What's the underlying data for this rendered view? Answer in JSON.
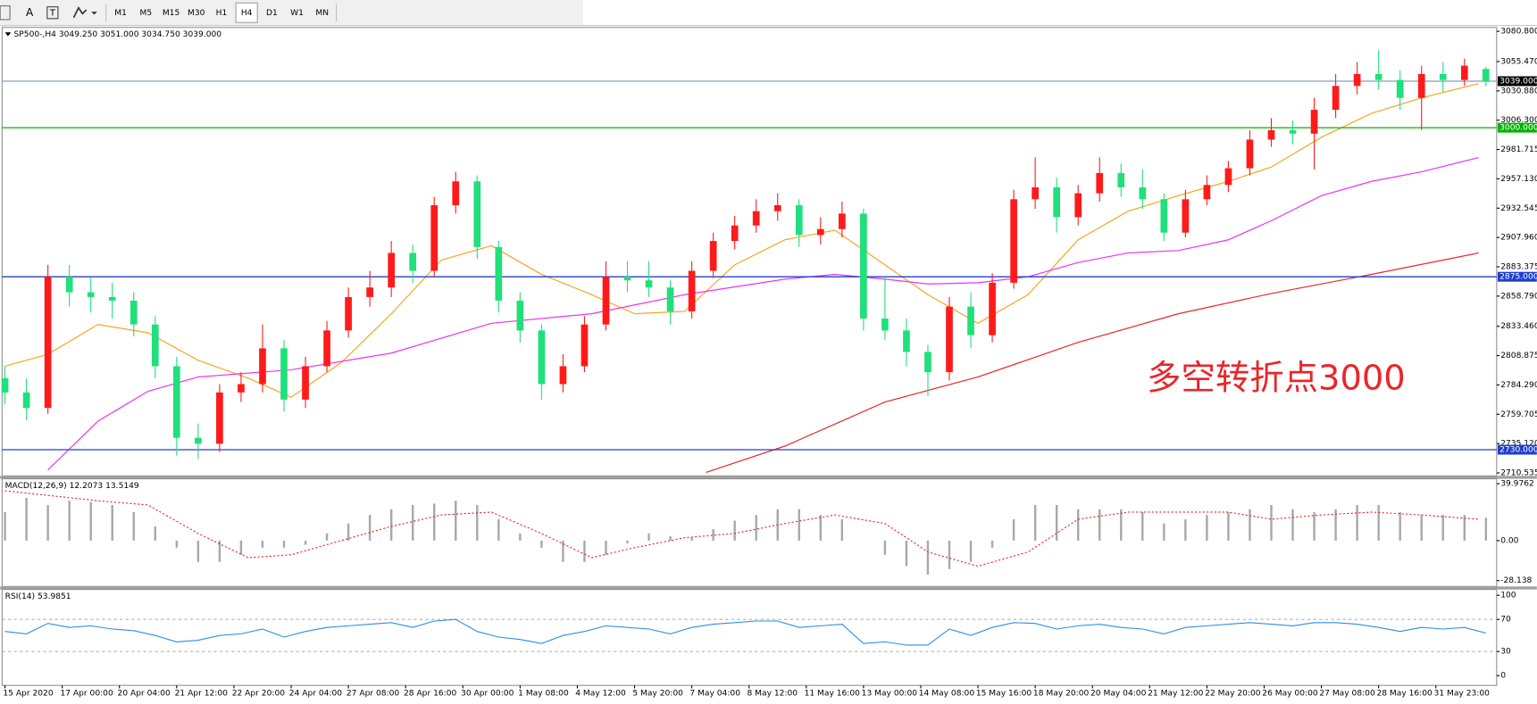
{
  "toolbar": {
    "text_tool": "A",
    "timeframes": [
      "M1",
      "M5",
      "M15",
      "M30",
      "H1",
      "H4",
      "D1",
      "W1",
      "MN"
    ],
    "selected": 5
  },
  "chart_data": [
    {
      "type": "candlestick",
      "title": "SP500-,H4  3049.250 3051.000 3034.750 3039.000",
      "annotation": "多空转折点3000",
      "annotation_color": "#e8262b",
      "up_color": "#ff1a1a",
      "down_color": "#1fe07a",
      "x": [
        0,
        3,
        6,
        9,
        12,
        15,
        18,
        21,
        24,
        27,
        30,
        33,
        36,
        39,
        42,
        45,
        48,
        51,
        54,
        57,
        60,
        63,
        66,
        69,
        72,
        75,
        78,
        81,
        84,
        87,
        90,
        93,
        96,
        99,
        102,
        105,
        108,
        111,
        114,
        117,
        120,
        123,
        126,
        129,
        132,
        135,
        138,
        141,
        144,
        147,
        150,
        153,
        156,
        159,
        162,
        165,
        168,
        171,
        174,
        177,
        180,
        183,
        186,
        189,
        192,
        195,
        198,
        201,
        204,
        207
      ],
      "open": [
        2790,
        2778,
        2765,
        2875,
        2862,
        2858,
        2855,
        2835,
        2800,
        2740,
        2735,
        2778,
        2785,
        2815,
        2772,
        2800,
        2830,
        2858,
        2866,
        2895,
        2880,
        2935,
        2955,
        2900,
        2855,
        2830,
        2785,
        2800,
        2835,
        2875,
        2872,
        2866,
        2846,
        2880,
        2905,
        2918,
        2930,
        2935,
        2910,
        2915,
        2928,
        2840,
        2830,
        2812,
        2795,
        2850,
        2826,
        2870,
        2940,
        2950,
        2925,
        2945,
        2962,
        2950,
        2940,
        2912,
        2940,
        2952,
        2966,
        2990,
        2998,
        2995,
        3015,
        3035,
        3045,
        3040,
        3025,
        3045,
        3040,
        3049.25
      ],
      "high": [
        2800,
        2790,
        2885,
        2885,
        2875,
        2870,
        2862,
        2842,
        2808,
        2752,
        2785,
        2795,
        2835,
        2822,
        2808,
        2838,
        2866,
        2880,
        2905,
        2902,
        2942,
        2963,
        2960,
        2905,
        2862,
        2835,
        2810,
        2842,
        2888,
        2888,
        2888,
        2872,
        2888,
        2912,
        2926,
        2940,
        2945,
        2940,
        2925,
        2938,
        2932,
        2876,
        2840,
        2818,
        2858,
        2862,
        2878,
        2948,
        2975,
        2958,
        2952,
        2975,
        2970,
        2965,
        2945,
        2948,
        2960,
        2972,
        2998,
        3008,
        3006,
        3025,
        3045,
        3055,
        3065,
        3048,
        3052,
        3055,
        3058,
        3051
      ],
      "low": [
        2768,
        2755,
        2760,
        2850,
        2845,
        2840,
        2825,
        2790,
        2725,
        2722,
        2728,
        2770,
        2778,
        2762,
        2765,
        2795,
        2824,
        2850,
        2858,
        2870,
        2875,
        2928,
        2890,
        2845,
        2820,
        2772,
        2778,
        2795,
        2830,
        2862,
        2858,
        2835,
        2840,
        2874,
        2898,
        2912,
        2922,
        2900,
        2902,
        2908,
        2830,
        2822,
        2800,
        2775,
        2788,
        2815,
        2820,
        2865,
        2932,
        2912,
        2918,
        2938,
        2942,
        2932,
        2905,
        2908,
        2935,
        2946,
        2960,
        2984,
        2986,
        2965,
        3008,
        3028,
        3032,
        3015,
        2998,
        3030,
        3035,
        3034.75
      ],
      "close": [
        2778,
        2765,
        2875,
        2862,
        2858,
        2855,
        2835,
        2800,
        2740,
        2735,
        2778,
        2785,
        2815,
        2772,
        2800,
        2830,
        2858,
        2866,
        2895,
        2880,
        2935,
        2955,
        2900,
        2855,
        2830,
        2785,
        2800,
        2835,
        2875,
        2872,
        2866,
        2846,
        2880,
        2905,
        2918,
        2930,
        2935,
        2910,
        2915,
        2928,
        2840,
        2830,
        2812,
        2795,
        2850,
        2826,
        2870,
        2940,
        2950,
        2925,
        2945,
        2962,
        2950,
        2940,
        2912,
        2940,
        2952,
        2966,
        2990,
        2998,
        2995,
        3015,
        3035,
        3045,
        3040,
        3025,
        3045,
        3040,
        3052,
        3039
      ],
      "xlim": [
        -0.4,
        208.5
      ],
      "xticks": [
        {
          "value": 0,
          "label": "15 Apr 2020"
        },
        {
          "value": 8,
          "label": "17 Apr 00:00"
        },
        {
          "value": 16,
          "label": "20 Apr 04:00"
        },
        {
          "value": 24,
          "label": "21 Apr 12:00"
        },
        {
          "value": 32,
          "label": "22 Apr 20:00"
        },
        {
          "value": 40,
          "label": "24 Apr 04:00"
        },
        {
          "value": 48,
          "label": "27 Apr 08:00"
        },
        {
          "value": 56,
          "label": "28 Apr 16:00"
        },
        {
          "value": 64,
          "label": "30 Apr 00:00"
        },
        {
          "value": 72,
          "label": "1 May 08:00"
        },
        {
          "value": 80,
          "label": "4 May 12:00"
        },
        {
          "value": 88,
          "label": "5 May 20:00"
        },
        {
          "value": 96,
          "label": "7 May 04:00"
        },
        {
          "value": 104,
          "label": "8 May 12:00"
        },
        {
          "value": 112,
          "label": "11 May 16:00"
        },
        {
          "value": 120,
          "label": "13 May 00:00"
        },
        {
          "value": 128,
          "label": "14 May 08:00"
        },
        {
          "value": 136,
          "label": "15 May 16:00"
        },
        {
          "value": 144,
          "label": "18 May 20:00"
        },
        {
          "value": 152,
          "label": "20 May 04:00"
        },
        {
          "value": 160,
          "label": "21 May 12:00"
        },
        {
          "value": 168,
          "label": "22 May 20:00"
        },
        {
          "value": 176,
          "label": "26 May 00:00"
        },
        {
          "value": 184,
          "label": "27 May 08:00"
        },
        {
          "value": 192,
          "label": "28 May 16:00"
        },
        {
          "value": 200,
          "label": "31 May 23:00"
        }
      ],
      "ylim": [
        2710.535,
        3080.8
      ],
      "yticks": [
        {
          "value": 3080.8,
          "label": "3080.800"
        },
        {
          "value": 3055.47,
          "label": "3055.470"
        },
        {
          "value": 3030.88,
          "label": "3030.880"
        },
        {
          "value": 3006.3,
          "label": "3006.300"
        },
        {
          "value": 2981.715,
          "label": "2981.715"
        },
        {
          "value": 2957.13,
          "label": "2957.130"
        },
        {
          "value": 2932.545,
          "label": "2932.545"
        },
        {
          "value": 2907.96,
          "label": "2907.960"
        },
        {
          "value": 2883.375,
          "label": "2883.375"
        },
        {
          "value": 2858.79,
          "label": "2858.790"
        },
        {
          "value": 2833.46,
          "label": "2833.460"
        },
        {
          "value": 2808.875,
          "label": "2808.875"
        },
        {
          "value": 2784.29,
          "label": "2784.290"
        },
        {
          "value": 2759.705,
          "label": "2759.705"
        },
        {
          "value": 2735.12,
          "label": "2735.120"
        },
        {
          "value": 2710.535,
          "label": "2710.535"
        }
      ],
      "overlays": [
        {
          "color": "#f5a623",
          "x": [
            0,
            6,
            13,
            20,
            27,
            34,
            40,
            47,
            54,
            61,
            68,
            75,
            82,
            88,
            95,
            102,
            109,
            116,
            123,
            129,
            136,
            143,
            150,
            157,
            164,
            171,
            177,
            184,
            191,
            198,
            206
          ],
          "values": [
            2800,
            2810,
            2835,
            2828,
            2805,
            2790,
            2774,
            2803,
            2844,
            2889,
            2901,
            2877,
            2860,
            2844,
            2846,
            2885,
            2906,
            2914,
            2885,
            2860,
            2836,
            2860,
            2906,
            2930,
            2943,
            2955,
            2967,
            2992,
            3012,
            3025,
            3037
          ]
        },
        {
          "color": "#ee33ee",
          "x": [
            6,
            13,
            20,
            27,
            40,
            54,
            68,
            82,
            95,
            109,
            116,
            123,
            129,
            136,
            143,
            150,
            157,
            164,
            171,
            177,
            184,
            191,
            198,
            206
          ],
          "values": [
            2713,
            2754,
            2779,
            2791,
            2797,
            2811,
            2836,
            2844,
            2860,
            2873,
            2877,
            2873,
            2869,
            2870,
            2875,
            2887,
            2895,
            2897,
            2906,
            2922,
            2943,
            2955,
            2963,
            2975
          ]
        },
        {
          "color": "#e8262b",
          "x": [
            98,
            109,
            123,
            136,
            150,
            164,
            177,
            191,
            206
          ],
          "values": [
            2711,
            2733,
            2770,
            2791,
            2820,
            2844,
            2861,
            2877,
            2895
          ]
        }
      ],
      "levels": [
        {
          "value": 3039,
          "label": "3039.000",
          "color": "#7f9fbf",
          "box_color": "#000000"
        },
        {
          "value": 3000,
          "label": "3000.000",
          "color": "#00b400",
          "box_color": "#00b400"
        },
        {
          "value": 2875,
          "label": "2875.000",
          "color": "#1f3fd0",
          "box_color": "#1f3fd0"
        },
        {
          "value": 2730,
          "label": "2730.000",
          "color": "#1f3fd0",
          "box_color": "#1f3fd0"
        }
      ]
    },
    {
      "type": "macd",
      "title": "MACD(12,26,9) 12.2073 13.5149",
      "histogram_color": "#a8a8a8",
      "signal_color": "#e8262b",
      "histogram": [
        20,
        30,
        25,
        28,
        27,
        25,
        20,
        10,
        -5,
        -15,
        -15,
        -10,
        -5,
        -5,
        -3,
        5,
        12,
        18,
        22,
        25,
        26,
        28,
        25,
        15,
        5,
        -5,
        -15,
        -15,
        -10,
        -2,
        5,
        3,
        2,
        8,
        14,
        18,
        22,
        22,
        18,
        15,
        0,
        -10,
        -18,
        -24,
        -20,
        -15,
        -5,
        15,
        25,
        25,
        22,
        22,
        22,
        20,
        12,
        15,
        18,
        20,
        22,
        25,
        22,
        20,
        22,
        25,
        25,
        20,
        18,
        18,
        18,
        16
      ],
      "signal": {
        "x": [
          0,
          13,
          20,
          27,
          34,
          40,
          47,
          54,
          61,
          68,
          75,
          82,
          88,
          95,
          102,
          109,
          116,
          123,
          129,
          136,
          143,
          150,
          157,
          164,
          171,
          177,
          184,
          191,
          198,
          206
        ],
        "values": [
          35,
          28,
          25,
          5,
          -12,
          -10,
          0,
          10,
          18,
          20,
          5,
          -12,
          -5,
          2,
          5,
          12,
          18,
          12,
          -8,
          -18,
          -8,
          15,
          20,
          20,
          20,
          15,
          18,
          20,
          18,
          15
        ]
      },
      "ylim": [
        -28.138,
        39.9762
      ],
      "yticks": [
        {
          "value": 39.9762,
          "label": "39.9762"
        },
        {
          "value": 0,
          "label": "0.00"
        },
        {
          "value": -28.138,
          "label": "-28.138"
        }
      ]
    },
    {
      "type": "line",
      "title": "RSI(14) 53.9851",
      "color": "#2a8ee8",
      "values": [
        55,
        52,
        65,
        60,
        62,
        58,
        56,
        50,
        42,
        44,
        50,
        52,
        58,
        48,
        55,
        60,
        62,
        64,
        66,
        60,
        68,
        70,
        55,
        48,
        45,
        40,
        50,
        55,
        62,
        60,
        58,
        52,
        60,
        64,
        66,
        68,
        68,
        60,
        62,
        64,
        40,
        42,
        38,
        38,
        58,
        50,
        60,
        66,
        65,
        58,
        62,
        64,
        60,
        58,
        52,
        60,
        62,
        64,
        66,
        64,
        62,
        66,
        66,
        64,
        60,
        55,
        60,
        58,
        60,
        53
      ],
      "ylim": [
        0,
        100
      ],
      "yticks": [
        100,
        70,
        30,
        0
      ],
      "grid": "dashed"
    }
  ]
}
